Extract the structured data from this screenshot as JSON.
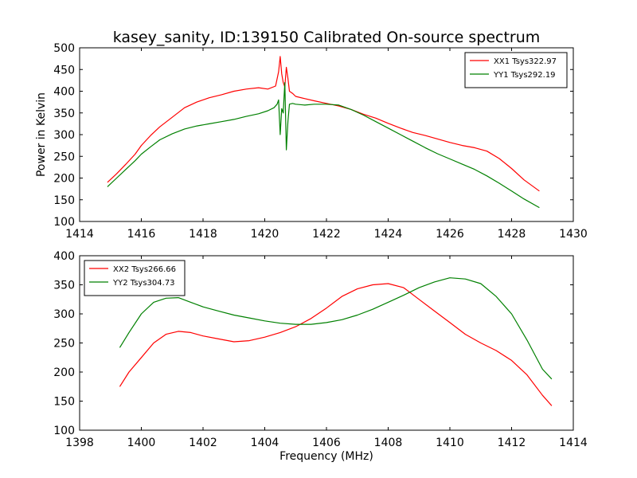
{
  "figure": {
    "title": "kasey_sanity, ID:139150 Calibrated On-source spectrum"
  },
  "chart_data": [
    {
      "type": "line",
      "title": "kasey_sanity, ID:139150 Calibrated On-source spectrum",
      "xlabel": "",
      "ylabel": "Power in Kelvin",
      "xlim": [
        1414,
        1430
      ],
      "ylim": [
        100,
        500
      ],
      "xticks": [
        1414,
        1416,
        1418,
        1420,
        1422,
        1424,
        1426,
        1428,
        1430
      ],
      "yticks": [
        100,
        150,
        200,
        250,
        300,
        350,
        400,
        450,
        500
      ],
      "legend": "top-right",
      "series": [
        {
          "name": "XX1 Tsys322.97",
          "color": "#ff0000",
          "x": [
            1414.9,
            1415.2,
            1415.5,
            1415.8,
            1416.0,
            1416.3,
            1416.6,
            1417.0,
            1417.4,
            1417.8,
            1418.2,
            1418.6,
            1419.0,
            1419.4,
            1419.8,
            1420.1,
            1420.35,
            1420.45,
            1420.5,
            1420.55,
            1420.6,
            1420.65,
            1420.7,
            1420.75,
            1420.8,
            1420.9,
            1421.0,
            1421.3,
            1421.6,
            1422.0,
            1422.4,
            1422.8,
            1423.2,
            1423.6,
            1424.0,
            1424.4,
            1424.8,
            1425.2,
            1425.6,
            1426.0,
            1426.4,
            1426.8,
            1427.2,
            1427.6,
            1428.0,
            1428.4,
            1428.9
          ],
          "values": [
            190,
            210,
            232,
            255,
            275,
            298,
            318,
            340,
            362,
            375,
            385,
            392,
            400,
            405,
            408,
            405,
            412,
            445,
            480,
            440,
            420,
            410,
            455,
            430,
            400,
            395,
            388,
            383,
            378,
            372,
            366,
            358,
            347,
            338,
            326,
            315,
            305,
            298,
            290,
            282,
            275,
            270,
            262,
            245,
            222,
            196,
            170
          ]
        },
        {
          "name": "YY1 Tsys292.19",
          "color": "#008000",
          "x": [
            1414.9,
            1415.2,
            1415.5,
            1415.8,
            1416.0,
            1416.3,
            1416.6,
            1417.0,
            1417.4,
            1417.8,
            1418.2,
            1418.6,
            1419.0,
            1419.4,
            1419.8,
            1420.1,
            1420.3,
            1420.4,
            1420.45,
            1420.5,
            1420.55,
            1420.6,
            1420.65,
            1420.7,
            1420.75,
            1420.8,
            1420.9,
            1421.0,
            1421.3,
            1421.6,
            1422.0,
            1422.4,
            1422.8,
            1423.2,
            1423.6,
            1424.0,
            1424.4,
            1424.8,
            1425.2,
            1425.6,
            1426.0,
            1426.4,
            1426.8,
            1427.2,
            1427.6,
            1428.0,
            1428.4,
            1428.9
          ],
          "values": [
            180,
            200,
            220,
            240,
            255,
            272,
            288,
            302,
            313,
            320,
            325,
            330,
            335,
            342,
            348,
            355,
            362,
            370,
            380,
            300,
            360,
            350,
            420,
            265,
            330,
            370,
            372,
            370,
            368,
            370,
            370,
            368,
            358,
            345,
            330,
            315,
            300,
            285,
            270,
            256,
            244,
            232,
            220,
            205,
            188,
            170,
            152,
            132
          ]
        }
      ]
    },
    {
      "type": "line",
      "title": "",
      "xlabel": "Frequency (MHz)",
      "ylabel": "",
      "xlim": [
        1398,
        1414
      ],
      "ylim": [
        100,
        400
      ],
      "xticks": [
        1398,
        1400,
        1402,
        1404,
        1406,
        1408,
        1410,
        1412,
        1414
      ],
      "yticks": [
        100,
        150,
        200,
        250,
        300,
        350,
        400
      ],
      "legend": "top-left",
      "series": [
        {
          "name": "XX2 Tsys266.66",
          "color": "#ff0000",
          "x": [
            1399.3,
            1399.6,
            1400.0,
            1400.4,
            1400.8,
            1401.2,
            1401.6,
            1402.0,
            1402.5,
            1403.0,
            1403.5,
            1404.0,
            1404.5,
            1405.0,
            1405.5,
            1406.0,
            1406.5,
            1407.0,
            1407.5,
            1408.0,
            1408.5,
            1409.0,
            1409.5,
            1410.0,
            1410.5,
            1411.0,
            1411.5,
            1412.0,
            1412.5,
            1413.0,
            1413.3
          ],
          "values": [
            175,
            200,
            225,
            250,
            265,
            270,
            268,
            262,
            257,
            252,
            254,
            260,
            268,
            278,
            292,
            310,
            330,
            343,
            350,
            352,
            345,
            325,
            305,
            285,
            265,
            250,
            237,
            220,
            195,
            160,
            142
          ]
        },
        {
          "name": "YY2 Tsys304.73",
          "color": "#008000",
          "x": [
            1399.3,
            1399.6,
            1400.0,
            1400.4,
            1400.8,
            1401.2,
            1401.6,
            1402.0,
            1402.5,
            1403.0,
            1403.5,
            1404.0,
            1404.5,
            1405.0,
            1405.5,
            1406.0,
            1406.5,
            1407.0,
            1407.5,
            1408.0,
            1408.5,
            1409.0,
            1409.5,
            1410.0,
            1410.5,
            1411.0,
            1411.5,
            1412.0,
            1412.5,
            1413.0,
            1413.3
          ],
          "values": [
            242,
            268,
            300,
            320,
            327,
            328,
            320,
            312,
            305,
            298,
            293,
            288,
            284,
            282,
            282,
            285,
            290,
            298,
            308,
            320,
            332,
            345,
            355,
            362,
            360,
            352,
            330,
            300,
            255,
            205,
            188
          ]
        }
      ]
    }
  ]
}
